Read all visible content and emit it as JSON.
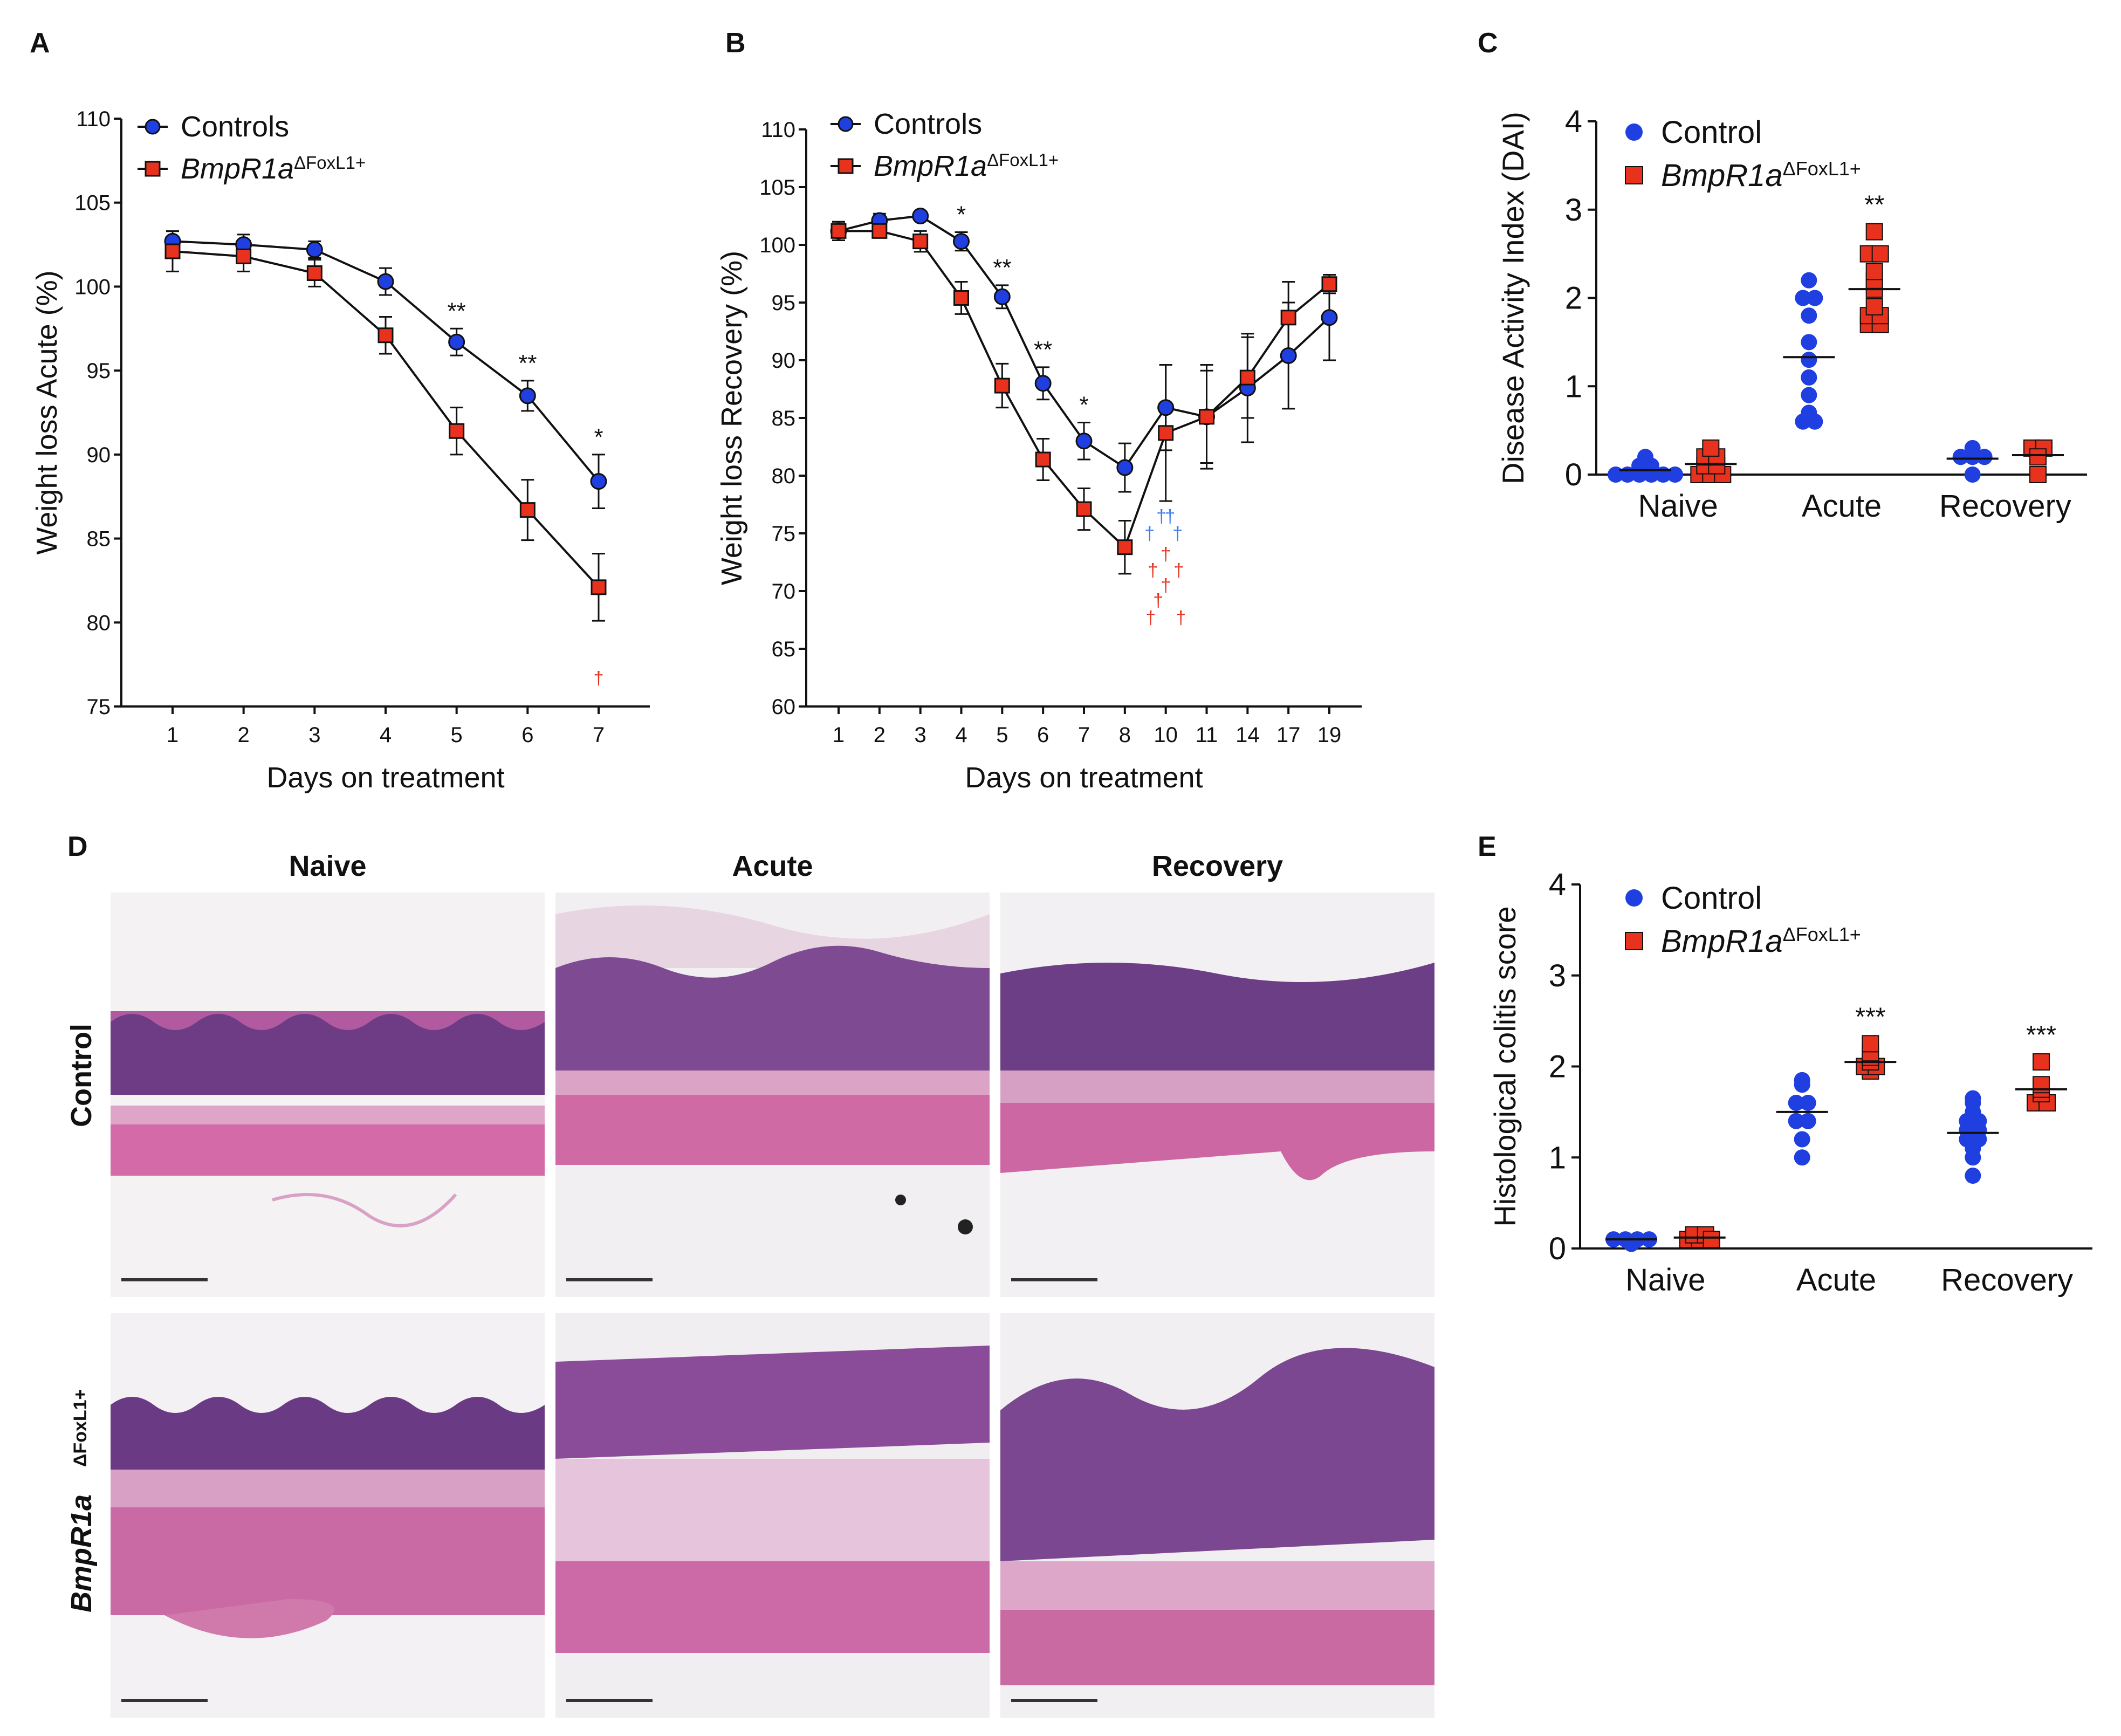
{
  "panel_labels": {
    "A": "A",
    "B": "B",
    "C": "C",
    "D": "D",
    "E": "E"
  },
  "colors": {
    "control": "#1f3fe0",
    "mutant": "#e8321e",
    "dagger_blue": "#3a7bf0",
    "dagger_red": "#e8321e"
  },
  "legend": {
    "controls": "Controls",
    "control": "Control",
    "mutant_base": "BmpR1a",
    "mutant_sup": "ΔFoxL1+"
  },
  "chart_data": [
    {
      "id": "A",
      "type": "line",
      "xlabel": "Days on treatment",
      "ylabel": "Weight loss Acute (%)",
      "categories": [
        "1",
        "2",
        "3",
        "4",
        "5",
        "6",
        "7"
      ],
      "ylim": [
        75,
        110
      ],
      "yticks": [
        75,
        80,
        85,
        90,
        95,
        100,
        105,
        110
      ],
      "series": [
        {
          "name": "Controls",
          "values": [
            102.7,
            102.5,
            102.2,
            100.3,
            96.7,
            93.5,
            88.4
          ],
          "errors": [
            0.6,
            0.6,
            0.5,
            0.8,
            0.8,
            0.9,
            1.6
          ]
        },
        {
          "name": "BmpR1aΔFoxL1+",
          "values": [
            102.1,
            101.8,
            100.8,
            97.1,
            91.4,
            86.7,
            82.1
          ],
          "errors": [
            1.2,
            0.9,
            0.8,
            1.1,
            1.4,
            1.8,
            2.0
          ]
        }
      ],
      "significance": [
        {
          "index": 4,
          "label": "**"
        },
        {
          "index": 5,
          "label": "**"
        },
        {
          "index": 6,
          "label": "*"
        }
      ],
      "daggers": [
        {
          "index": 6,
          "color": "red",
          "count": 1
        }
      ]
    },
    {
      "id": "B",
      "type": "line",
      "xlabel": "Days on treatment",
      "ylabel": "Weight loss Recovery (%)",
      "categories": [
        "1",
        "2",
        "3",
        "4",
        "5",
        "6",
        "7",
        "8",
        "10",
        "11",
        "14",
        "17",
        "19"
      ],
      "ylim": [
        60,
        110
      ],
      "yticks": [
        60,
        65,
        70,
        75,
        80,
        85,
        90,
        95,
        100,
        105,
        110
      ],
      "series": [
        {
          "name": "Controls",
          "values": [
            101.2,
            102.1,
            102.5,
            100.3,
            95.5,
            88.0,
            83.0,
            80.7,
            85.9,
            85.1,
            87.6,
            90.4,
            93.7
          ],
          "errors": [
            0.8,
            0.6,
            0.4,
            0.8,
            1.0,
            1.4,
            1.6,
            2.1,
            3.7,
            4.5,
            4.7,
            4.6,
            3.7
          ]
        },
        {
          "name": "BmpR1aΔFoxL1+",
          "values": [
            101.2,
            101.2,
            100.3,
            95.4,
            87.8,
            81.4,
            77.1,
            73.8,
            83.7,
            85.1,
            88.5,
            93.7,
            96.6
          ],
          "errors": [
            0.8,
            0.6,
            0.9,
            1.4,
            1.9,
            1.8,
            1.8,
            2.3,
            5.9,
            4.0,
            3.5,
            3.1,
            0.8
          ]
        }
      ],
      "significance": [
        {
          "index": 3,
          "label": "*"
        },
        {
          "index": 4,
          "label": "**"
        },
        {
          "index": 5,
          "label": "**"
        },
        {
          "index": 6,
          "label": "*"
        }
      ],
      "daggers": [
        {
          "index": 8,
          "color": "blue",
          "count": 4
        },
        {
          "index": 8,
          "color": "red",
          "count": 7
        }
      ]
    },
    {
      "id": "C",
      "type": "scatter",
      "ylabel": "Disease Activity Index (DAI)",
      "categories": [
        "Naive",
        "Acute",
        "Recovery"
      ],
      "ylim": [
        0,
        4
      ],
      "yticks": [
        0,
        1,
        2,
        3,
        4
      ],
      "series": [
        {
          "name": "Control",
          "groups": [
            [
              0,
              0,
              0,
              0,
              0.1,
              0.1,
              0.2,
              0,
              0
            ],
            [
              0.6,
              0.6,
              0.7,
              0.9,
              1.1,
              1.3,
              1.5,
              1.8,
              2.0,
              2.0,
              2.2
            ],
            [
              0,
              0.2,
              0.2,
              0.3,
              0.2
            ]
          ],
          "means": [
            0.05,
            1.33,
            0.18
          ]
        },
        {
          "name": "BmpR1aΔFoxL1+",
          "groups": [
            [
              0,
              0,
              0,
              0.1,
              0.1,
              0.2,
              0.2,
              0.3
            ],
            [
              1.7,
              1.7,
              1.8,
              1.8,
              1.9,
              2.1,
              2.2,
              2.3,
              2.5,
              2.5,
              2.75
            ],
            [
              0,
              0.3,
              0.3,
              0.2
            ]
          ],
          "means": [
            0.12,
            2.1,
            0.22
          ]
        }
      ],
      "significance": [
        {
          "index": 1,
          "label": "**"
        }
      ]
    },
    {
      "id": "E",
      "type": "scatter",
      "ylabel": "Histological colitis score",
      "categories": [
        "Naive",
        "Acute",
        "Recovery"
      ],
      "ylim": [
        0,
        4
      ],
      "yticks": [
        0,
        1,
        2,
        3,
        4
      ],
      "series": [
        {
          "name": "Control",
          "groups": [
            [
              0.1,
              0.1,
              0.05,
              0.1,
              0.1
            ],
            [
              1.0,
              1.2,
              1.4,
              1.4,
              1.6,
              1.6,
              1.8,
              1.85
            ],
            [
              0.8,
              1.0,
              1.1,
              1.2,
              1.2,
              1.3,
              1.3,
              1.4,
              1.4,
              1.5,
              1.6,
              1.65
            ]
          ],
          "means": [
            0.1,
            1.5,
            1.27
          ]
        },
        {
          "name": "BmpR1aΔFoxL1+",
          "groups": [
            [
              0.1,
              0.1,
              0.15,
              0.15,
              0.1
            ],
            [
              1.95,
              2.0,
              2.0,
              2.05,
              2.1,
              2.15,
              2.25
            ],
            [
              1.6,
              1.6,
              1.7,
              1.75,
              1.8,
              2.05
            ]
          ],
          "means": [
            0.12,
            2.05,
            1.75
          ]
        }
      ],
      "significance": [
        {
          "index": 1,
          "label": "***"
        },
        {
          "index": 2,
          "label": "***"
        }
      ]
    }
  ],
  "histology": {
    "columns": [
      "Naive",
      "Acute",
      "Recovery"
    ],
    "rows": [
      "Control",
      "BmpR1a",
      "ΔFoxL1+"
    ]
  }
}
